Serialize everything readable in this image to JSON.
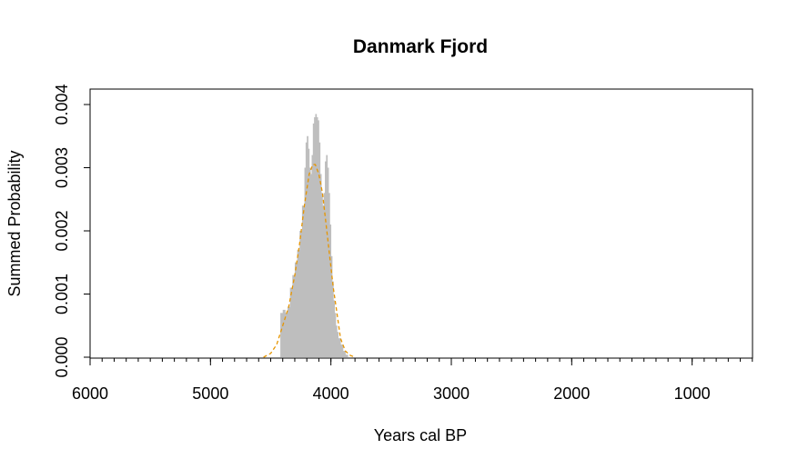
{
  "chart_data": {
    "type": "area",
    "title": "Danmark Fjord",
    "xlabel": "Years cal BP",
    "ylabel": "Summed Probability",
    "xlim": [
      6000,
      500
    ],
    "ylim": [
      0,
      0.004
    ],
    "x_reversed": true,
    "x_ticks": [
      "6000",
      "5000",
      "4000",
      "3000",
      "2000",
      "1000"
    ],
    "y_ticks": [
      "0.000",
      "0.001",
      "0.002",
      "0.003",
      "0.004"
    ],
    "x_minor_step": 100,
    "grid": false,
    "legend": "none",
    "series": [
      {
        "type": "histogram",
        "color": "#bebebe",
        "x": [
          4420,
          4400,
          4380,
          4360,
          4340,
          4320,
          4300,
          4280,
          4260,
          4240,
          4220,
          4210,
          4200,
          4190,
          4180,
          4170,
          4160,
          4150,
          4140,
          4130,
          4120,
          4110,
          4100,
          4090,
          4080,
          4070,
          4060,
          4050,
          4040,
          4030,
          4020,
          4010,
          4000,
          3990,
          3980,
          3970,
          3960,
          3950,
          3940,
          3920,
          3900,
          3880
        ],
        "values": [
          0.0007,
          0.00075,
          0.0007,
          0.0008,
          0.0011,
          0.0013,
          0.0015,
          0.0017,
          0.002,
          0.0024,
          0.003,
          0.0034,
          0.0035,
          0.0033,
          0.003,
          0.0029,
          0.0032,
          0.0037,
          0.0038,
          0.00385,
          0.0038,
          0.00375,
          0.0034,
          0.0029,
          0.0026,
          0.0024,
          0.0026,
          0.0031,
          0.0032,
          0.003,
          0.0026,
          0.0021,
          0.0016,
          0.0012,
          0.0009,
          0.0007,
          0.0005,
          0.0004,
          0.0003,
          0.0002,
          0.0001,
          4e-05
        ]
      },
      {
        "type": "line",
        "style": "dashed",
        "color": "#e69500",
        "x": [
          4560,
          4500,
          4450,
          4400,
          4350,
          4300,
          4260,
          4220,
          4180,
          4150,
          4130,
          4100,
          4070,
          4040,
          4010,
          3980,
          3950,
          3920,
          3880,
          3840,
          3800
        ],
        "values": [
          0,
          6e-05,
          0.0002,
          0.0005,
          0.0008,
          0.0013,
          0.0018,
          0.0024,
          0.0029,
          0.00305,
          0.00305,
          0.0029,
          0.0026,
          0.0021,
          0.0016,
          0.0011,
          0.0007,
          0.0003,
          0.0001,
          3e-05,
          0
        ]
      }
    ]
  }
}
